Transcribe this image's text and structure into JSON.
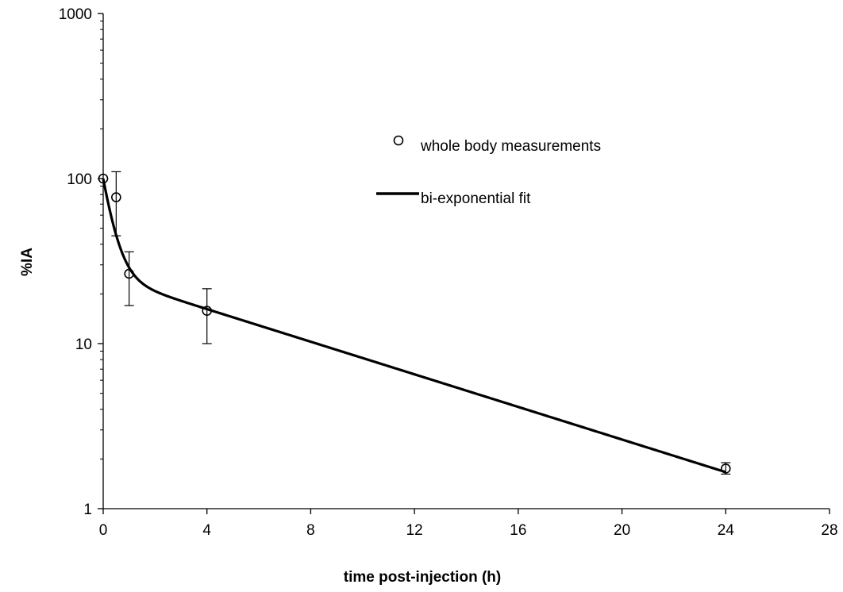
{
  "chart_data": {
    "type": "scatter",
    "title": "",
    "xlabel": "time post-injection  (h)",
    "ylabel": "%IA",
    "xlim": [
      0,
      28
    ],
    "ylim": [
      1,
      1000
    ],
    "yscale": "log",
    "grid": false,
    "legend_position": "upper-right",
    "x_ticks": [
      "0",
      "4",
      "8",
      "12",
      "16",
      "20",
      "24",
      "28"
    ],
    "y_ticks": [
      "1",
      "10",
      "100",
      "1000"
    ],
    "series": [
      {
        "name": "whole body measurements",
        "kind": "points",
        "marker": "open-circle",
        "x": [
          0,
          0.5,
          1,
          4,
          24
        ],
        "y": [
          100,
          77,
          26.5,
          15.8,
          1.75
        ],
        "err_low": [
          100,
          45,
          17,
          10,
          1.62
        ],
        "err_high": [
          100,
          110,
          36,
          21.5,
          1.9
        ]
      },
      {
        "name": "bi-exponential fit",
        "kind": "line",
        "components": [
          {
            "amplitude": 74.5,
            "rate": 2.5
          },
          {
            "amplitude": 25.5,
            "rate": 0.1137
          }
        ]
      }
    ]
  }
}
